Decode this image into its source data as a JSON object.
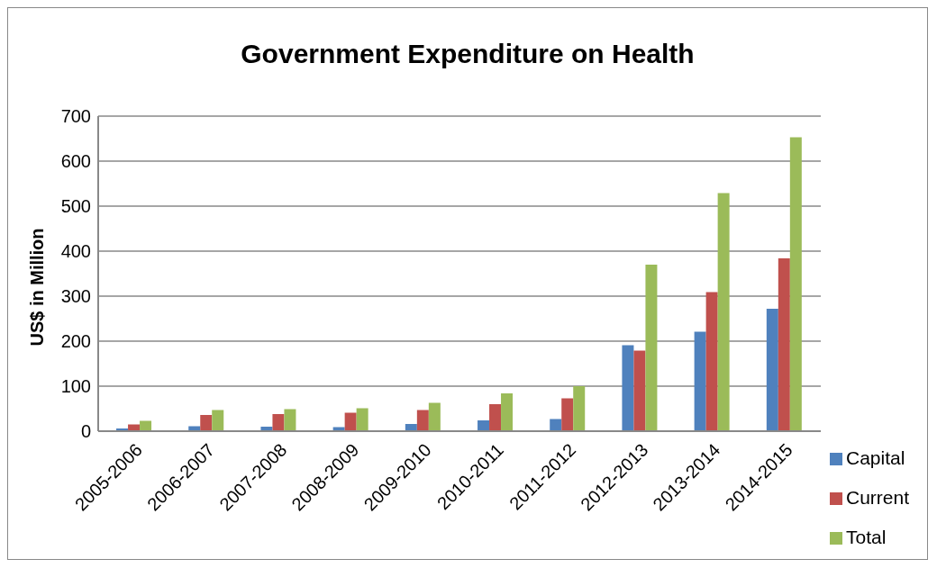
{
  "chart_data": {
    "type": "bar",
    "title": "Government Expenditure on Health",
    "ylabel": "US$ in Million",
    "categories": [
      "2005-2006",
      "2006-2007",
      "2007-2008",
      "2008-2009",
      "2009-2010",
      "2010-2011",
      "2011-2012",
      "2012-2013",
      "2013-2014",
      "2014-2015"
    ],
    "series": [
      {
        "name": "Capital",
        "color": "#4f81bd",
        "values": [
          6,
          11,
          10,
          9,
          16,
          24,
          27,
          191,
          221,
          272
        ]
      },
      {
        "name": "Current",
        "color": "#c0504d",
        "values": [
          15,
          36,
          38,
          41,
          47,
          60,
          73,
          179,
          309,
          384
        ]
      },
      {
        "name": "Total",
        "color": "#9bbb59",
        "values": [
          23,
          47,
          49,
          51,
          63,
          84,
          100,
          370,
          529,
          653
        ]
      }
    ],
    "ylim": [
      0,
      700
    ],
    "yticks": [
      0,
      100,
      200,
      300,
      400,
      500,
      600,
      700
    ],
    "grid": "y",
    "legend": "bottom right"
  }
}
